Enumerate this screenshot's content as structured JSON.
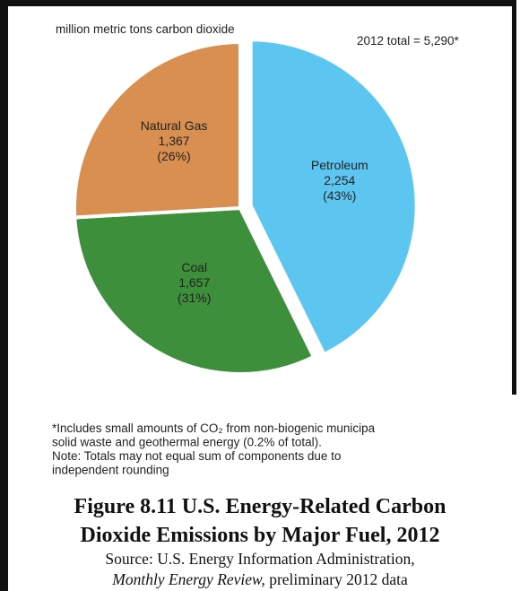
{
  "chart_data": {
    "type": "pie",
    "subtitle": "million metric tons carbon dioxide",
    "annotation": "2012 total = 5,290*",
    "categories": [
      "Petroleum",
      "Coal",
      "Natural Gas"
    ],
    "values": [
      2254,
      1657,
      1367
    ],
    "value_labels": [
      "2,254",
      "1,657",
      "1,367"
    ],
    "percents": [
      43,
      31,
      26
    ],
    "percent_labels": [
      "(43%)",
      "(31%)",
      "(26%)"
    ],
    "colors": [
      "#5cc6f1",
      "#3d8f3b",
      "#d98f4f"
    ],
    "exploded": "Petroleum",
    "footnote": [
      "*Includes small amounts of CO₂ from non-biogenic municipa",
      "solid waste and geothermal energy (0.2% of total).",
      "Note: Totals may not equal sum of components due to",
      "independent rounding"
    ]
  },
  "caption": {
    "title": [
      "Figure 8.11 U.S. Energy-Related Carbon",
      "Dioxide Emissions by Major Fuel, 2012"
    ],
    "source_line1": "Source: U.S. Energy Information Administration,",
    "source_italic": "Monthly Energy Review,",
    "source_rest": " preliminary 2012 data"
  }
}
